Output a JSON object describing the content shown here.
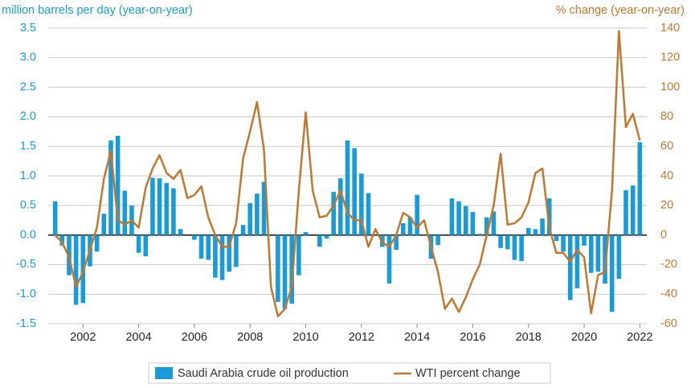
{
  "chart_data": {
    "type": "bar-line",
    "y_label": "million barrels per day (year-on-year)",
    "y2_label": "% change (year-on-year)",
    "x": [
      2001,
      2001.25,
      2001.5,
      2001.75,
      2002,
      2002.25,
      2002.5,
      2002.75,
      2003,
      2003.25,
      2003.5,
      2003.75,
      2004,
      2004.25,
      2004.5,
      2004.75,
      2005,
      2005.25,
      2005.5,
      2005.75,
      2006,
      2006.25,
      2006.5,
      2006.75,
      2007,
      2007.25,
      2007.5,
      2007.75,
      2008,
      2008.25,
      2008.5,
      2008.75,
      2009,
      2009.25,
      2009.5,
      2009.75,
      2010,
      2010.25,
      2010.5,
      2010.75,
      2011,
      2011.25,
      2011.5,
      2011.75,
      2012,
      2012.25,
      2012.5,
      2012.75,
      2013,
      2013.25,
      2013.5,
      2013.75,
      2014,
      2014.25,
      2014.5,
      2014.75,
      2015,
      2015.25,
      2015.5,
      2015.75,
      2016,
      2016.25,
      2016.5,
      2016.75,
      2017,
      2017.25,
      2017.5,
      2017.75,
      2018,
      2018.25,
      2018.5,
      2018.75,
      2019,
      2019.25,
      2019.5,
      2019.75,
      2020,
      2020.25,
      2020.5,
      2020.75,
      2021,
      2021.25,
      2021.5,
      2021.75,
      2022
    ],
    "series": [
      {
        "name": "Saudi Arabia crude oil production",
        "color": "#1a9bd7",
        "type": "bar",
        "values": [
          0.57,
          -0.18,
          -0.68,
          -1.18,
          -1.15,
          -0.53,
          -0.28,
          0.36,
          1.6,
          1.68,
          0.75,
          0.5,
          -0.3,
          -0.36,
          0.97,
          0.96,
          0.88,
          0.79,
          0.1,
          0.0,
          -0.08,
          -0.4,
          -0.42,
          -0.72,
          -0.76,
          -0.62,
          -0.54,
          0.17,
          0.54,
          0.7,
          0.9,
          0.0,
          -1.13,
          -1.25,
          -1.16,
          -0.68,
          0.05,
          0.0,
          -0.2,
          -0.06,
          0.73,
          0.96,
          1.6,
          1.47,
          1.04,
          0.71,
          0.0,
          -0.2,
          -0.82,
          -0.25,
          0.2,
          0.3,
          0.68,
          0.0,
          -0.4,
          -0.17,
          0.0,
          0.62,
          0.57,
          0.49,
          0.39,
          0.02,
          0.3,
          0.4,
          -0.22,
          -0.24,
          -0.42,
          -0.44,
          0.12,
          0.1,
          0.28,
          0.62,
          -0.1,
          -0.28,
          -1.1,
          -0.9,
          -0.18,
          -0.64,
          -0.62,
          -0.82,
          -1.3,
          -0.74,
          0.76,
          0.84,
          1.57
        ]
      },
      {
        "name": "WTI percent change",
        "color": "#c0782e",
        "type": "line",
        "axis": "y2",
        "values": [
          0,
          -5,
          -15,
          -35,
          -25,
          -10,
          5,
          38,
          57,
          10,
          7,
          10,
          5,
          32,
          45,
          54,
          42,
          38,
          44,
          25,
          27,
          33,
          12,
          0,
          -8,
          -8,
          8,
          52,
          70,
          90,
          58,
          -35,
          -55,
          -50,
          -35,
          30,
          83,
          30,
          12,
          13,
          20,
          30,
          15,
          10,
          10,
          -8,
          4,
          -5,
          -8,
          0,
          15,
          12,
          5,
          10,
          -8,
          -25,
          -50,
          -43,
          -52,
          -42,
          -30,
          -20,
          0,
          20,
          55,
          7,
          8,
          12,
          22,
          42,
          45,
          5,
          -12,
          -12,
          -18,
          -10,
          -15,
          -53,
          -27,
          -25,
          30,
          138,
          73,
          82,
          64
        ]
      }
    ],
    "xlim": [
      2000.75,
      2022.25
    ],
    "xticks": [
      2002,
      2004,
      2006,
      2008,
      2010,
      2012,
      2014,
      2016,
      2018,
      2020,
      2022
    ],
    "ylim": [
      -1.5,
      3.5
    ],
    "yticks": [
      -1.5,
      {
        "value": -1,
        "label": "-1.0"
      },
      -0.5,
      {
        "value": 0,
        "label": "0.0"
      },
      0.5,
      {
        "value": 1,
        "label": "1.0"
      },
      1.5,
      {
        "value": 2,
        "label": "2.0"
      },
      2.5,
      {
        "value": 3,
        "label": "3.0"
      },
      3.5
    ],
    "y2lim": [
      -60,
      140
    ],
    "y2ticks": [
      -60,
      -40,
      -20,
      0,
      20,
      40,
      60,
      80,
      100,
      120,
      140
    ],
    "grid": true,
    "legend": "bottom"
  }
}
